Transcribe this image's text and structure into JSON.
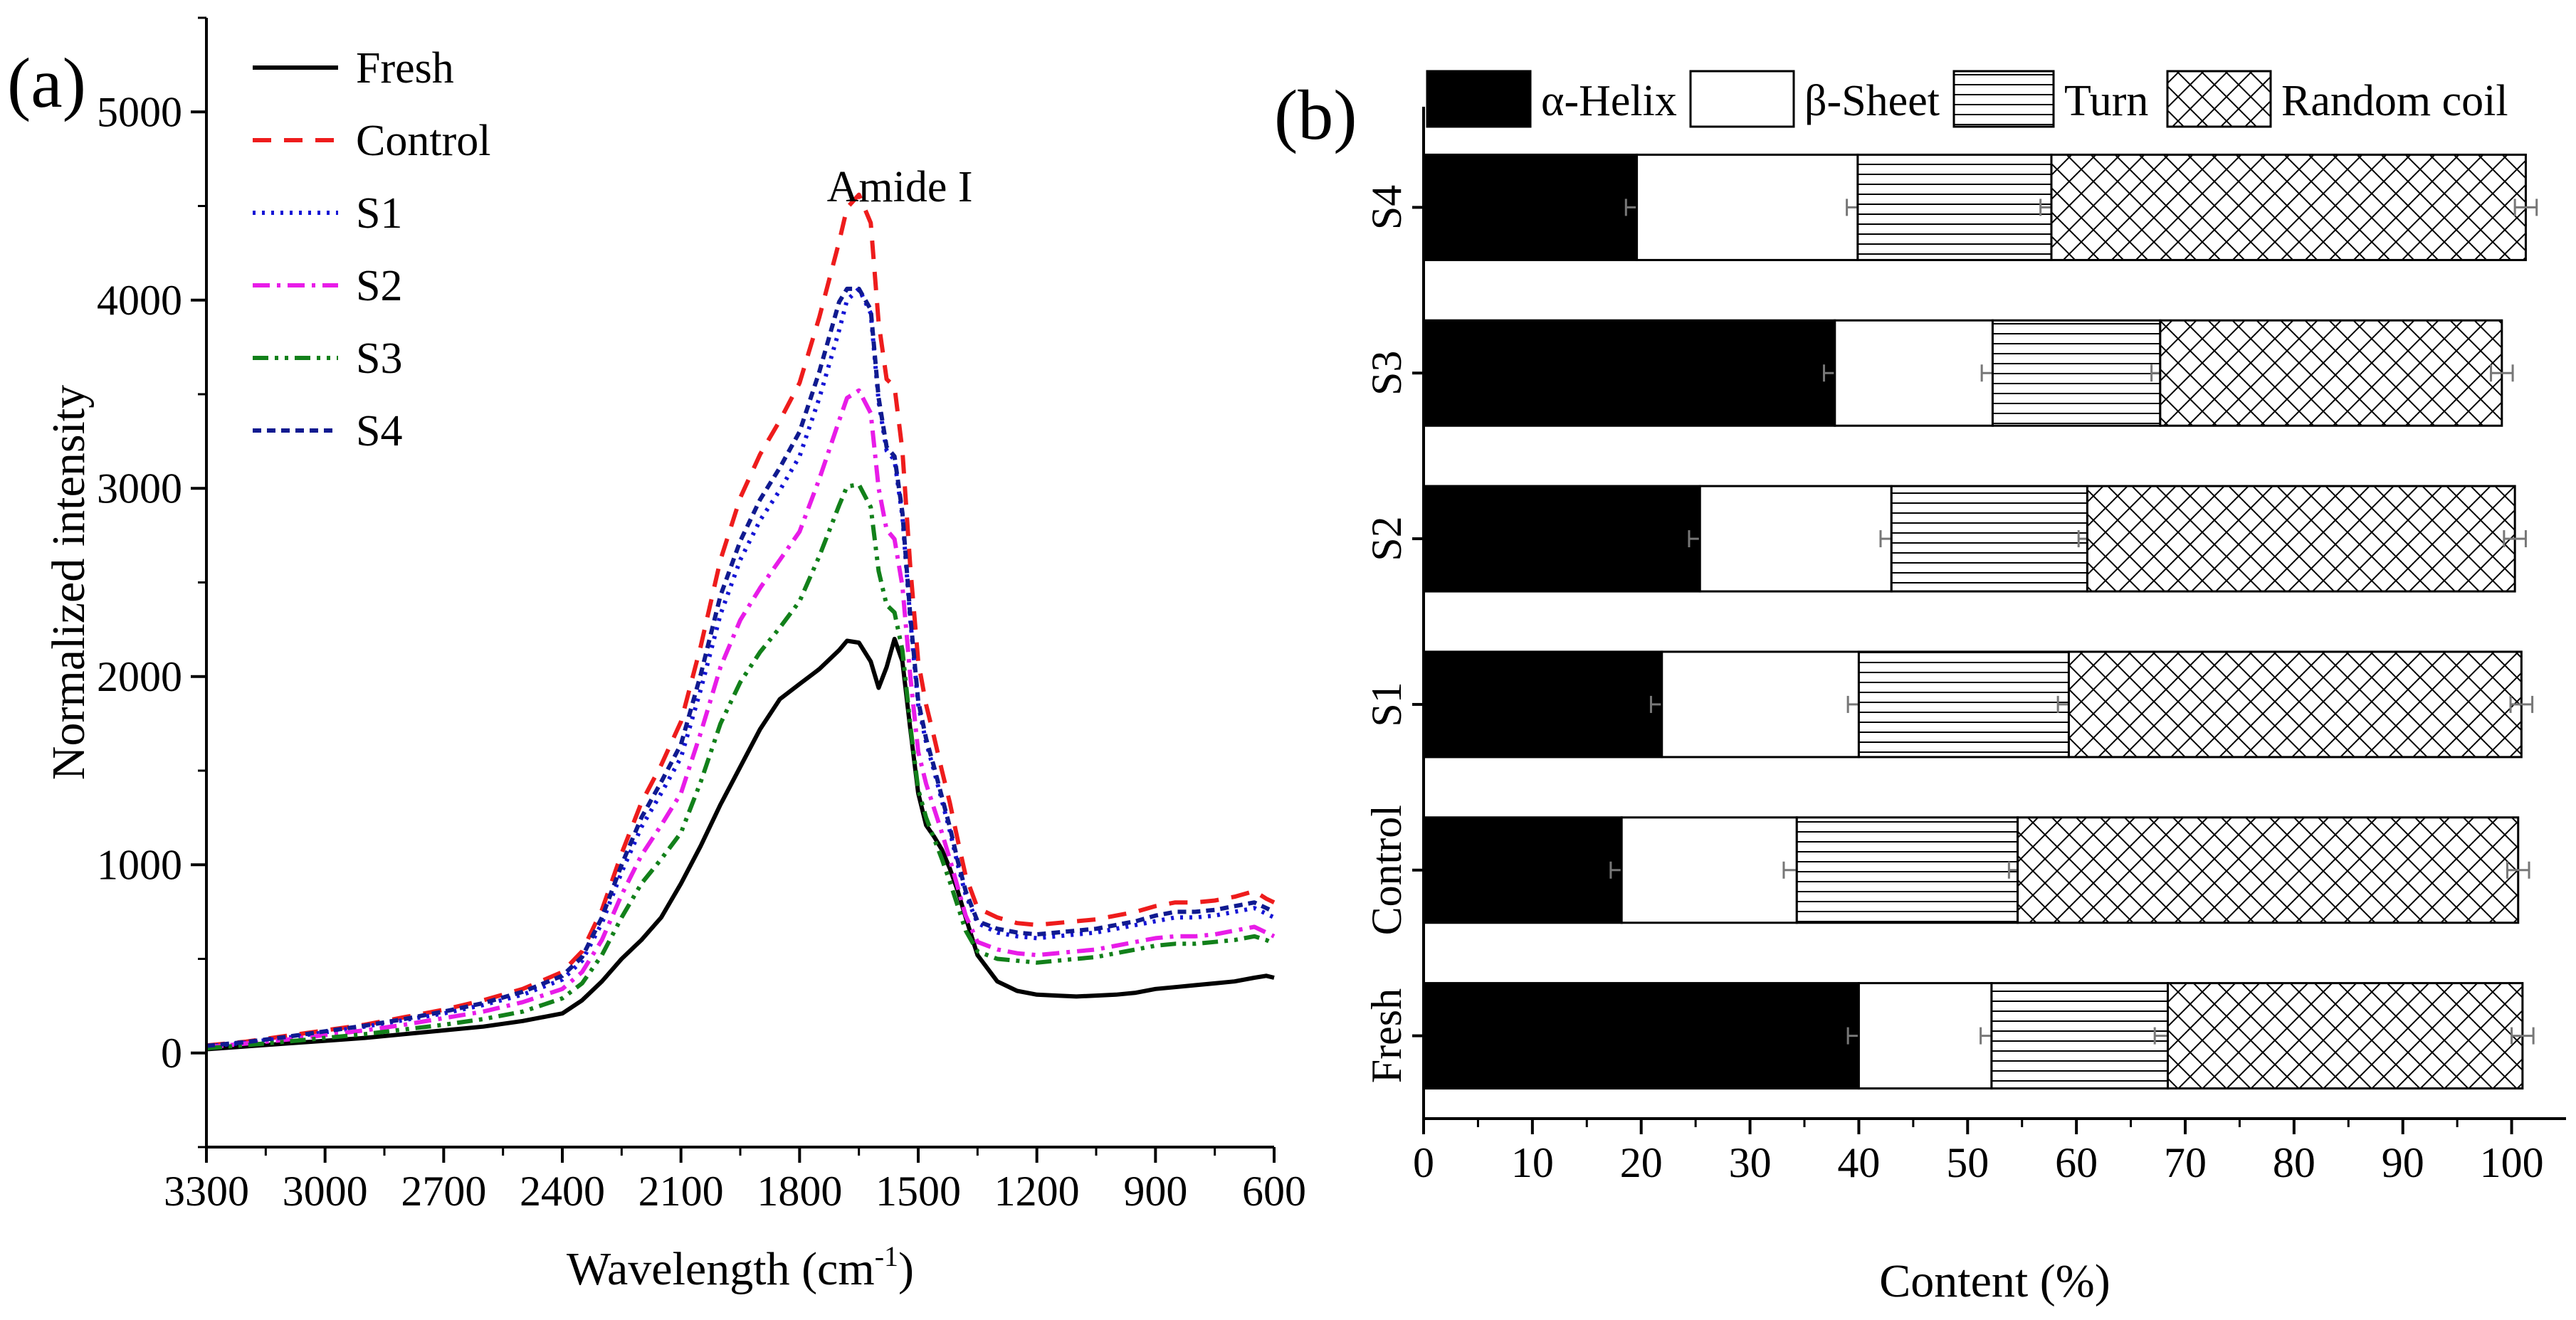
{
  "panels": {
    "a": {
      "label": "(a)"
    },
    "b": {
      "label": "(b)"
    }
  },
  "chart_data": [
    {
      "type": "line",
      "panel": "(a)",
      "title": "",
      "xlabel": "Wavelength (cm",
      "xlabel_sup": "-1",
      "xlabel_close": ")",
      "ylabel": "Normalized intensity",
      "xlim": [
        3300,
        600
      ],
      "ylim": [
        -500,
        5500
      ],
      "xticks": [
        3300,
        3000,
        2700,
        2400,
        2100,
        1800,
        1500,
        1200,
        900,
        600
      ],
      "yticks": [
        0,
        1000,
        2000,
        3000,
        4000,
        5000
      ],
      "annotation": {
        "text": "Amide I",
        "x": 1650,
        "y": 4600
      },
      "legend_position": "top-left",
      "series": [
        {
          "name": "Fresh",
          "color": "#000000",
          "dash": "solid",
          "x": [
            3300,
            3200,
            3100,
            3000,
            2900,
            2800,
            2700,
            2600,
            2500,
            2400,
            2350,
            2300,
            2250,
            2200,
            2150,
            2100,
            2050,
            2000,
            1950,
            1900,
            1850,
            1800,
            1750,
            1700,
            1680,
            1650,
            1620,
            1600,
            1580,
            1560,
            1540,
            1520,
            1500,
            1480,
            1460,
            1440,
            1420,
            1400,
            1380,
            1350,
            1300,
            1250,
            1200,
            1150,
            1100,
            1050,
            1000,
            950,
            900,
            850,
            800,
            750,
            700,
            650,
            620,
            600
          ],
          "y": [
            20,
            35,
            50,
            65,
            80,
            100,
            120,
            140,
            170,
            210,
            280,
            380,
            500,
            600,
            720,
            900,
            1100,
            1320,
            1520,
            1720,
            1880,
            1960,
            2040,
            2140,
            2190,
            2180,
            2080,
            1940,
            2050,
            2200,
            2080,
            1720,
            1380,
            1210,
            1150,
            1080,
            980,
            860,
            720,
            520,
            380,
            330,
            310,
            305,
            300,
            305,
            310,
            320,
            340,
            350,
            360,
            370,
            380,
            400,
            410,
            400
          ]
        },
        {
          "name": "Control",
          "color": "#ee1c1c",
          "dash": "long-dash",
          "x": [
            3300,
            3200,
            3100,
            3000,
            2900,
            2800,
            2700,
            2600,
            2500,
            2400,
            2350,
            2300,
            2250,
            2200,
            2150,
            2100,
            2050,
            2000,
            1950,
            1900,
            1850,
            1800,
            1750,
            1700,
            1680,
            1650,
            1620,
            1600,
            1580,
            1560,
            1540,
            1520,
            1500,
            1480,
            1460,
            1440,
            1420,
            1400,
            1380,
            1350,
            1300,
            1250,
            1200,
            1150,
            1100,
            1050,
            1000,
            950,
            900,
            850,
            800,
            750,
            700,
            650,
            620,
            600
          ],
          "y": [
            40,
            60,
            90,
            120,
            150,
            190,
            230,
            280,
            340,
            430,
            540,
            760,
            1060,
            1330,
            1530,
            1760,
            2160,
            2620,
            2950,
            3180,
            3360,
            3560,
            3910,
            4310,
            4490,
            4560,
            4410,
            3880,
            3580,
            3540,
            3200,
            2580,
            2080,
            1850,
            1680,
            1500,
            1330,
            1130,
            940,
            770,
            720,
            690,
            680,
            690,
            700,
            710,
            730,
            750,
            780,
            800,
            800,
            810,
            830,
            860,
            820,
            800
          ]
        },
        {
          "name": "S1",
          "color": "#1515d5",
          "dash": "dotted",
          "x": [
            3300,
            3200,
            3100,
            3000,
            2900,
            2800,
            2700,
            2600,
            2500,
            2400,
            2350,
            2300,
            2250,
            2200,
            2150,
            2100,
            2050,
            2000,
            1950,
            1900,
            1850,
            1800,
            1750,
            1700,
            1680,
            1650,
            1620,
            1600,
            1580,
            1560,
            1540,
            1520,
            1500,
            1480,
            1460,
            1440,
            1420,
            1400,
            1380,
            1350,
            1300,
            1250,
            1200,
            1150,
            1100,
            1050,
            1000,
            950,
            900,
            850,
            800,
            750,
            700,
            650,
            620,
            600
          ],
          "y": [
            35,
            55,
            80,
            110,
            140,
            175,
            210,
            255,
            310,
            390,
            490,
            690,
            960,
            1200,
            1380,
            1570,
            1930,
            2330,
            2620,
            2830,
            2990,
            3170,
            3480,
            3840,
            4000,
            4060,
            3930,
            3460,
            3200,
            3150,
            2850,
            2300,
            1850,
            1650,
            1500,
            1340,
            1180,
            1000,
            840,
            690,
            640,
            620,
            610,
            620,
            630,
            640,
            660,
            680,
            700,
            720,
            720,
            730,
            750,
            770,
            740,
            720
          ]
        },
        {
          "name": "S2",
          "color": "#e81ce8",
          "dash": "dash-dot",
          "x": [
            3300,
            3200,
            3100,
            3000,
            2900,
            2800,
            2700,
            2600,
            2500,
            2400,
            2350,
            2300,
            2250,
            2200,
            2150,
            2100,
            2050,
            2000,
            1950,
            1900,
            1850,
            1800,
            1750,
            1700,
            1680,
            1650,
            1620,
            1600,
            1580,
            1560,
            1540,
            1520,
            1500,
            1480,
            1460,
            1440,
            1420,
            1400,
            1380,
            1350,
            1300,
            1250,
            1200,
            1150,
            1100,
            1050,
            1000,
            950,
            900,
            850,
            800,
            750,
            700,
            650,
            620,
            600
          ],
          "y": [
            30,
            50,
            70,
            95,
            120,
            150,
            185,
            220,
            270,
            340,
            430,
            600,
            840,
            1050,
            1210,
            1380,
            1700,
            2050,
            2300,
            2470,
            2620,
            2770,
            3050,
            3360,
            3480,
            3520,
            3400,
            3000,
            2780,
            2730,
            2480,
            2000,
            1600,
            1430,
            1300,
            1170,
            1030,
            880,
            730,
            590,
            550,
            530,
            520,
            530,
            540,
            550,
            570,
            590,
            610,
            620,
            620,
            630,
            650,
            670,
            640,
            620
          ]
        },
        {
          "name": "S3",
          "color": "#12801a",
          "dash": "dash-dot-dot",
          "x": [
            3300,
            3200,
            3100,
            3000,
            2900,
            2800,
            2700,
            2600,
            2500,
            2400,
            2350,
            2300,
            2250,
            2200,
            2150,
            2100,
            2050,
            2000,
            1950,
            1900,
            1850,
            1800,
            1750,
            1700,
            1680,
            1650,
            1620,
            1600,
            1580,
            1560,
            1540,
            1520,
            1500,
            1480,
            1460,
            1440,
            1420,
            1400,
            1380,
            1350,
            1300,
            1250,
            1200,
            1150,
            1100,
            1050,
            1000,
            950,
            900,
            850,
            800,
            750,
            700,
            650,
            620,
            600
          ],
          "y": [
            25,
            42,
            60,
            80,
            100,
            125,
            150,
            180,
            220,
            290,
            370,
            520,
            720,
            900,
            1030,
            1170,
            1440,
            1750,
            1970,
            2130,
            2260,
            2400,
            2640,
            2910,
            3010,
            3020,
            2900,
            2560,
            2380,
            2340,
            2140,
            1740,
            1400,
            1250,
            1140,
            1030,
            910,
            780,
            650,
            540,
            500,
            490,
            480,
            490,
            500,
            510,
            530,
            550,
            570,
            580,
            580,
            590,
            600,
            620,
            600,
            580
          ]
        },
        {
          "name": "S4",
          "color": "#101a90",
          "dash": "short-dash",
          "x": [
            3300,
            3200,
            3100,
            3000,
            2900,
            2800,
            2700,
            2600,
            2500,
            2400,
            2350,
            2300,
            2250,
            2200,
            2150,
            2100,
            2050,
            2000,
            1950,
            1900,
            1850,
            1800,
            1750,
            1700,
            1680,
            1650,
            1620,
            1600,
            1580,
            1560,
            1540,
            1520,
            1500,
            1480,
            1460,
            1440,
            1420,
            1400,
            1380,
            1350,
            1300,
            1250,
            1200,
            1150,
            1100,
            1050,
            1000,
            950,
            900,
            850,
            800,
            750,
            700,
            650,
            620,
            600
          ],
          "y": [
            38,
            58,
            85,
            115,
            145,
            180,
            220,
            265,
            325,
            410,
            510,
            720,
            1000,
            1250,
            1440,
            1640,
            2010,
            2430,
            2720,
            2940,
            3110,
            3300,
            3620,
            3990,
            4060,
            4060,
            3950,
            3480,
            3220,
            3170,
            2870,
            2320,
            1870,
            1670,
            1520,
            1360,
            1200,
            1020,
            860,
            700,
            660,
            640,
            630,
            640,
            650,
            660,
            680,
            700,
            730,
            750,
            750,
            760,
            780,
            800,
            770,
            750
          ]
        }
      ]
    },
    {
      "type": "stacked-bar-horizontal",
      "panel": "(b)",
      "title": "",
      "xlabel": "Content (%)",
      "ylabel": "",
      "xlim": [
        0,
        105
      ],
      "xticks": [
        0,
        10,
        20,
        30,
        40,
        50,
        60,
        70,
        80,
        90,
        100
      ],
      "legend_position": "top",
      "categories": [
        "Fresh",
        "Control",
        "S1",
        "S2",
        "S3",
        "S4"
      ],
      "series": [
        {
          "name": "α-Helix",
          "fill": "solid-black",
          "values": [
            40.0,
            18.2,
            21.9,
            25.4,
            37.8,
            19.6
          ],
          "errors": [
            1.0,
            1.0,
            1.0,
            1.0,
            1.0,
            1.0
          ]
        },
        {
          "name": "β-Sheet",
          "fill": "white",
          "values": [
            12.2,
            16.1,
            18.1,
            17.6,
            14.5,
            20.3
          ],
          "errors": [
            1.0,
            1.2,
            1.0,
            1.0,
            1.0,
            1.0
          ]
        },
        {
          "name": "Turn",
          "fill": "horizontal-lines",
          "values": [
            16.2,
            20.3,
            19.3,
            18.0,
            15.4,
            17.8
          ],
          "errors": [
            1.2,
            0.8,
            1.0,
            0.8,
            0.8,
            1.0
          ]
        },
        {
          "name": "Random coil",
          "fill": "crosshatch",
          "values": [
            32.6,
            46.0,
            41.6,
            39.3,
            31.4,
            43.6
          ],
          "errors": [
            1.0,
            1.0,
            1.0,
            1.0,
            1.0,
            1.0
          ]
        }
      ]
    }
  ]
}
